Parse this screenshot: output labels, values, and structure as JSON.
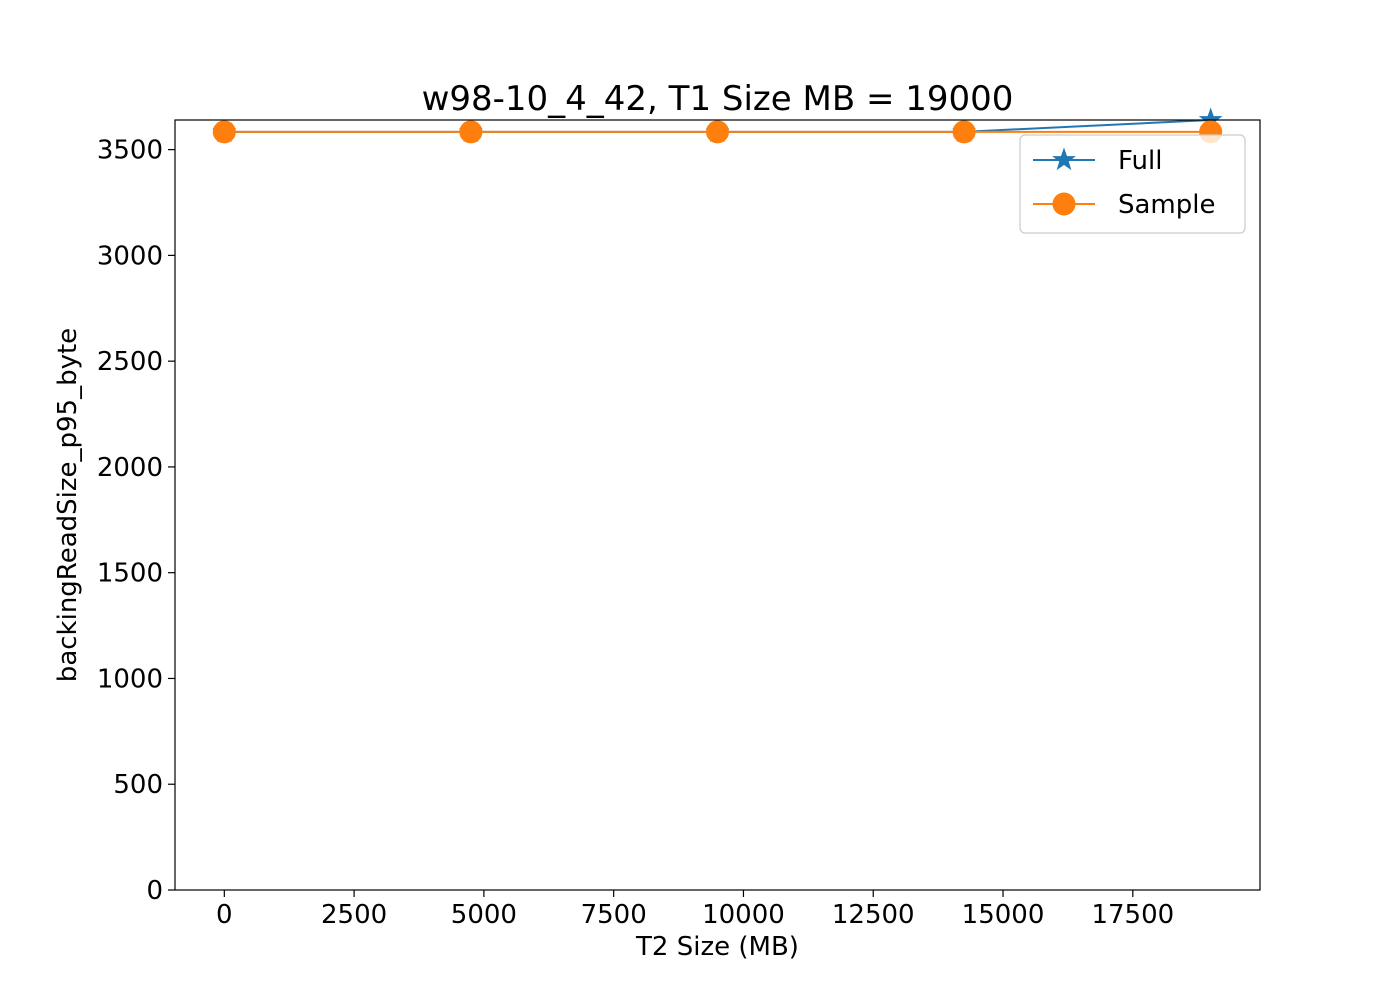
{
  "chart_data": {
    "type": "line",
    "title": "w98-10_4_42, T1 Size MB = 19000",
    "xlabel": "T2 Size (MB)",
    "ylabel": "backingReadSize_p95_byte",
    "xlim": [
      -950,
      19950
    ],
    "ylim": [
      0,
      3640
    ],
    "xticks": [
      0,
      2500,
      5000,
      7500,
      10000,
      12500,
      15000,
      17500
    ],
    "yticks": [
      0,
      500,
      1000,
      1500,
      2000,
      2500,
      3000,
      3500
    ],
    "grid": false,
    "legend_position": "upper-right",
    "series": [
      {
        "name": "Full",
        "marker": "star",
        "color": "#1f77b4",
        "x": [
          0,
          4750,
          9500,
          14250,
          19000
        ],
        "y": [
          3584,
          3584,
          3584,
          3584,
          3640
        ]
      },
      {
        "name": "Sample",
        "marker": "circle",
        "color": "#ff7f0e",
        "x": [
          0,
          4750,
          9500,
          14250,
          19000
        ],
        "y": [
          3584,
          3584,
          3584,
          3584,
          3584
        ]
      }
    ]
  }
}
